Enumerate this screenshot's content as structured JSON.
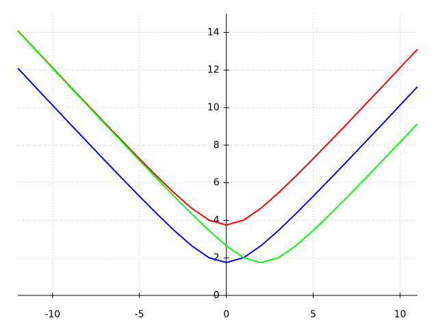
{
  "chart_data": {
    "type": "line",
    "x": [
      -12,
      -11,
      -10,
      -9,
      -8,
      -7,
      -6,
      -5,
      -4,
      -3,
      -2,
      -1,
      0,
      1,
      2,
      3,
      4,
      5,
      6,
      7,
      8,
      9,
      10,
      11
    ],
    "series": [
      {
        "color": "#ff0000",
        "values": [
          14.1,
          13.11,
          12.13,
          11.14,
          10.17,
          9.19,
          8.23,
          7.28,
          6.35,
          5.46,
          4.65,
          4.01,
          3.75,
          4.01,
          4.65,
          5.46,
          6.35,
          7.28,
          8.23,
          9.19,
          10.17,
          11.14,
          12.13,
          13.11
        ]
      },
      {
        "color": "#0000ff",
        "values": [
          12.1,
          11.11,
          10.13,
          9.14,
          8.17,
          7.19,
          6.23,
          5.28,
          4.35,
          3.46,
          2.65,
          2.01,
          1.75,
          2.01,
          2.65,
          3.46,
          4.35,
          5.28,
          6.23,
          7.19,
          8.17,
          9.14,
          10.13,
          11.11
        ]
      },
      {
        "color": "#00ff00",
        "values": [
          14.08,
          13.09,
          12.1,
          11.11,
          10.13,
          9.14,
          8.17,
          7.19,
          6.23,
          5.28,
          4.35,
          3.46,
          2.65,
          2.01,
          1.75,
          2.01,
          2.65,
          3.46,
          4.35,
          5.28,
          6.23,
          7.19,
          8.17,
          9.14
        ]
      }
    ],
    "xlim": [
      -12,
      11
    ],
    "ylim": [
      0,
      15
    ],
    "xticks": [
      -10,
      -5,
      0,
      5,
      10
    ],
    "yticks": [
      0,
      2,
      4,
      6,
      8,
      10,
      12,
      14
    ],
    "grid": true
  }
}
